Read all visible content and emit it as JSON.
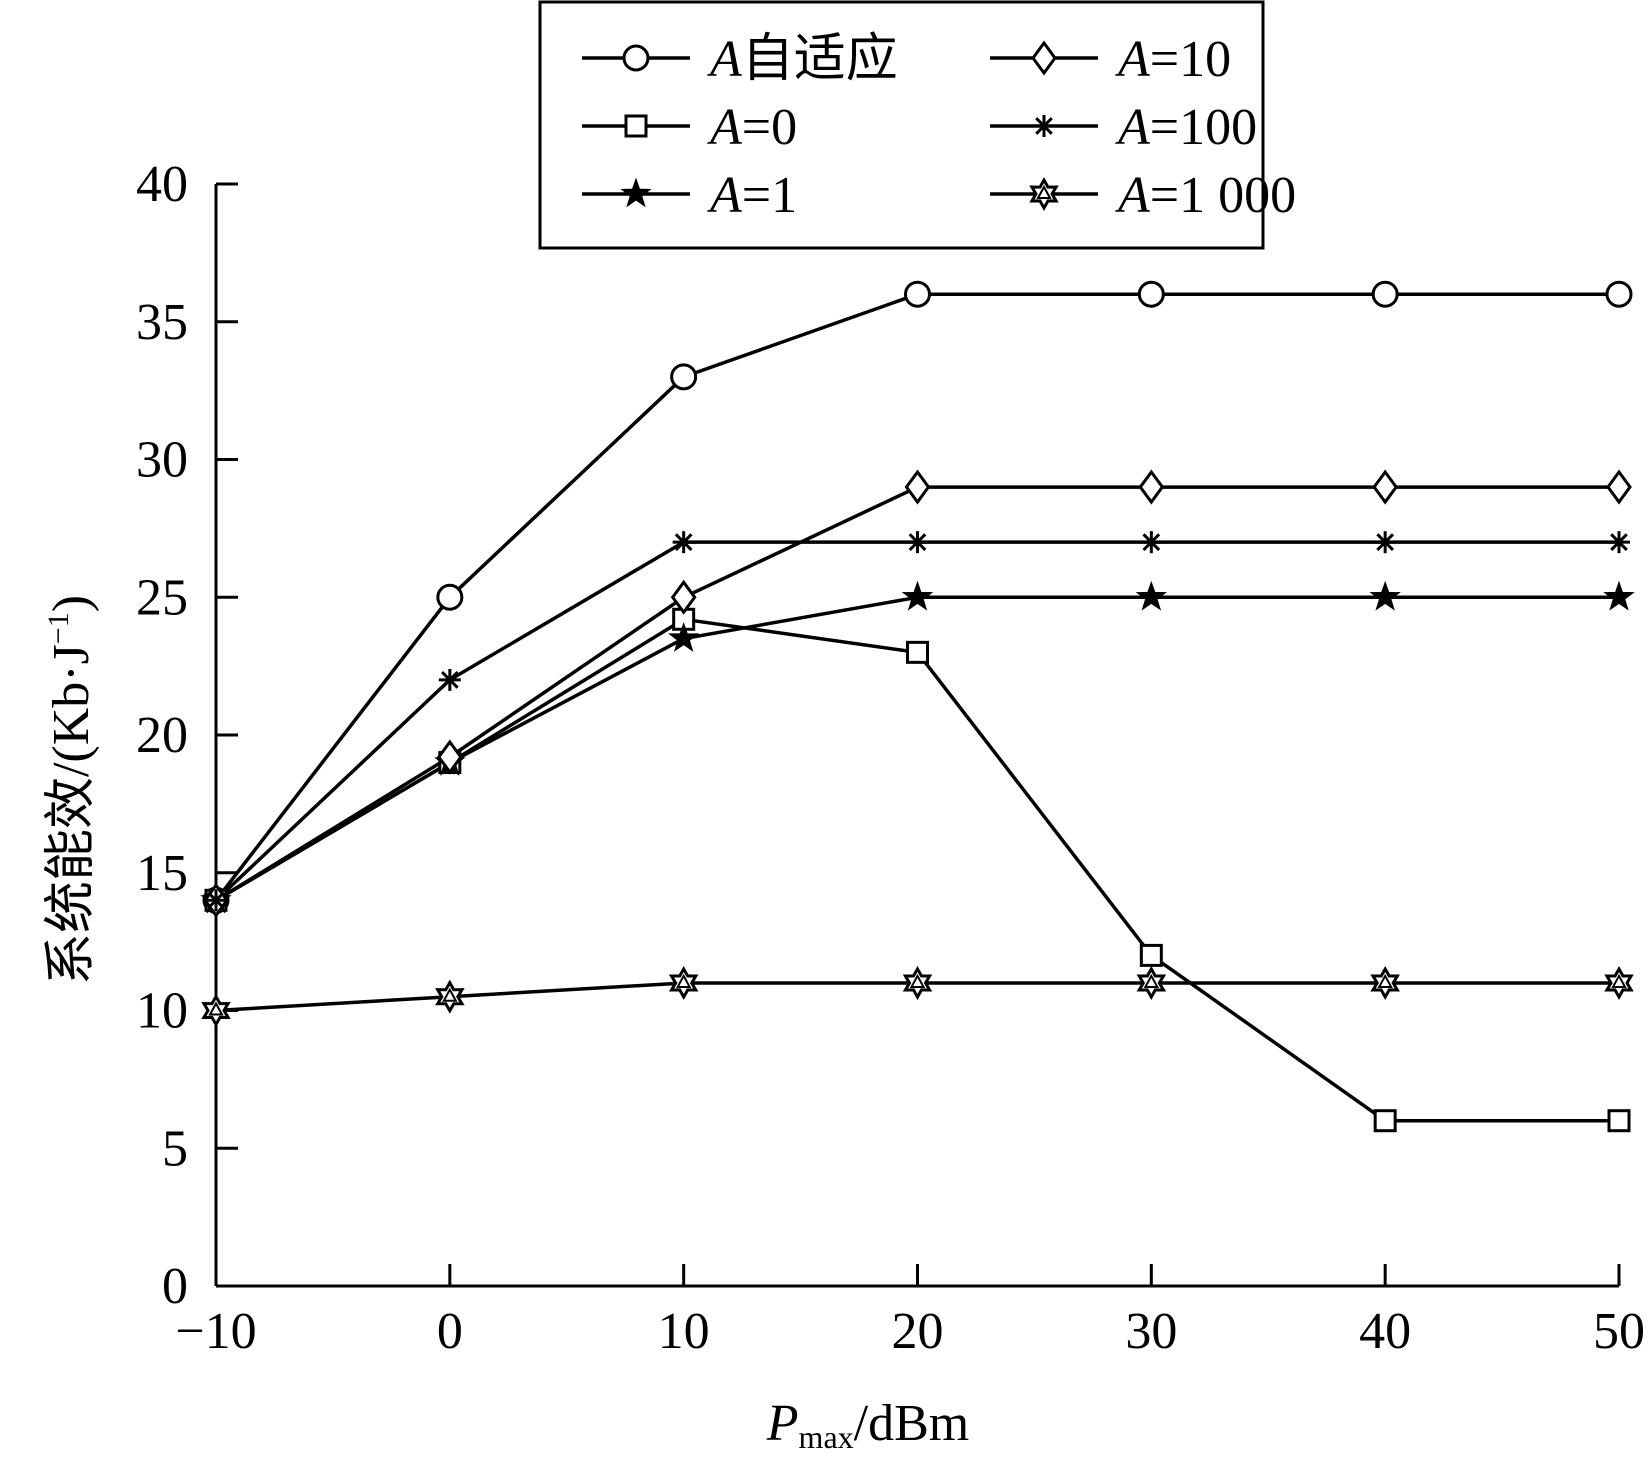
{
  "chart_data": {
    "type": "line",
    "title": "",
    "xlabel": {
      "main": "P",
      "sub": "max",
      "unit": "/dBm"
    },
    "ylabel": {
      "text": "系统能效/(Kb·J",
      "sup": "−1",
      "close": ")"
    },
    "x": [
      -10,
      0,
      10,
      20,
      30,
      40,
      50
    ],
    "xlim": [
      -10,
      50
    ],
    "ylim": [
      0,
      40
    ],
    "xticks": [
      -10,
      0,
      10,
      20,
      30,
      40,
      50
    ],
    "xtick_labels": [
      "−10",
      "0",
      "10",
      "20",
      "30",
      "40",
      "50"
    ],
    "yticks": [
      0,
      5,
      10,
      15,
      20,
      25,
      30,
      35,
      40
    ],
    "ytick_labels": [
      "0",
      "5",
      "10",
      "15",
      "20",
      "25",
      "30",
      "35",
      "40"
    ],
    "grid": false,
    "legend_position": "top-center",
    "series": [
      {
        "name": "A自适应",
        "legend_var": "A",
        "legend_rest": "自适应",
        "marker": "circle",
        "values": [
          14,
          25,
          33,
          36,
          36,
          36,
          36
        ]
      },
      {
        "name": "A=0",
        "legend_var": "A",
        "legend_rest": "=0",
        "marker": "square",
        "values": [
          14,
          19,
          24.2,
          23,
          12,
          6,
          6
        ]
      },
      {
        "name": "A=1",
        "legend_var": "A",
        "legend_rest": "=1",
        "marker": "star5",
        "values": [
          14,
          19,
          23.5,
          25,
          25,
          25,
          25
        ]
      },
      {
        "name": "A=10",
        "legend_var": "A",
        "legend_rest": "=10",
        "marker": "diamond",
        "values": [
          14,
          19.2,
          25,
          29,
          29,
          29,
          29
        ]
      },
      {
        "name": "A=100",
        "legend_var": "A",
        "legend_rest": "=100",
        "marker": "asterisk",
        "values": [
          14,
          22,
          27,
          27,
          27,
          27,
          27
        ]
      },
      {
        "name": "A=1 000",
        "legend_var": "A",
        "legend_rest": "=1 000",
        "marker": "hexstar",
        "values": [
          10,
          10.5,
          11,
          11,
          11,
          11,
          11
        ]
      }
    ],
    "colors": {
      "line": "#000000",
      "background": "#ffffff"
    }
  }
}
